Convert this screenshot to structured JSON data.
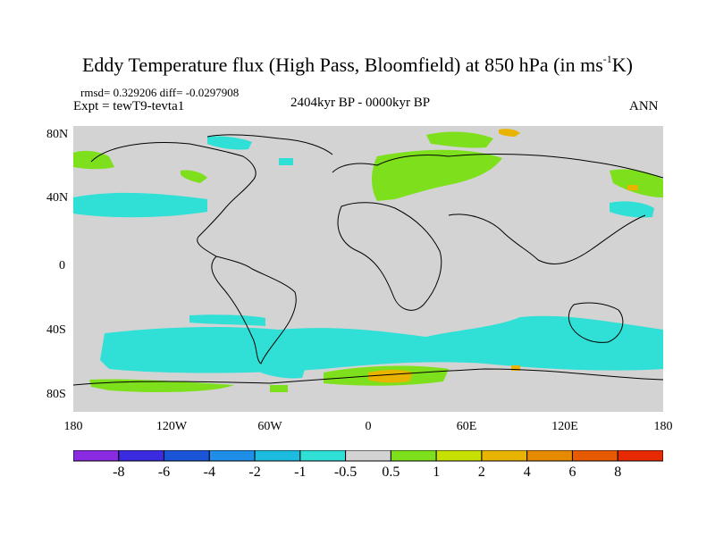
{
  "title": {
    "text": "Eddy Temperature flux (High Pass, Bloomfield) at 850 hPa (in ms",
    "sup": "-1",
    "suffix": "K)"
  },
  "stats": "rmsd= 0.329206 diff= -0.0297908",
  "experiment": "Expt = tewT9-tevta1",
  "period": "2404kyr BP - 0000kyr BP",
  "season": "ANN",
  "map_data": {
    "projection": "cylindrical-equidistant",
    "lon_range": [
      -180,
      180
    ],
    "lat_range": [
      -90,
      90
    ],
    "lat_ticks": [
      "80N",
      "40N",
      "0",
      "40S",
      "80S"
    ],
    "lon_ticks": [
      "180",
      "120W",
      "60W",
      "0",
      "60E",
      "120E",
      "180"
    ],
    "background_color": "#d3d3d3",
    "coastline_color": "#000000"
  },
  "colorbar": {
    "labels": [
      "-8",
      "-6",
      "-4",
      "-2",
      "-1",
      "-0.5",
      "0.5",
      "1",
      "2",
      "4",
      "6",
      "8"
    ],
    "colors": [
      "#8a2be2",
      "#3a2ae0",
      "#1a55d8",
      "#1e8ee8",
      "#1bbce0",
      "#30e0d6",
      "#d3d3d3",
      "#7ee01c",
      "#c8e000",
      "#e8b400",
      "#e88a00",
      "#e85a00",
      "#e82a00"
    ]
  }
}
